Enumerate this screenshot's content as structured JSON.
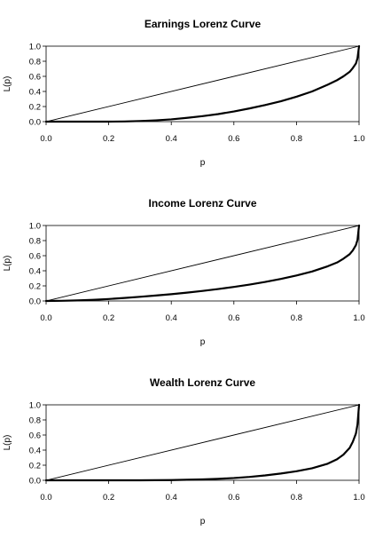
{
  "chart_data": [
    {
      "type": "line",
      "title": "Earnings Lorenz Curve",
      "xlabel": "p",
      "ylabel": "L(p)",
      "xlim": [
        0,
        1
      ],
      "ylim": [
        0,
        1
      ],
      "xticks": [
        "0.0",
        "0.2",
        "0.4",
        "0.6",
        "0.8",
        "1.0"
      ],
      "yticks": [
        "0.0",
        "0.2",
        "0.4",
        "0.6",
        "0.8",
        "1.0"
      ],
      "grid": false,
      "series": [
        {
          "role": "equality-line",
          "x": [
            0,
            1
          ],
          "y": [
            0,
            1
          ]
        },
        {
          "role": "lorenz-curve",
          "x": [
            0,
            0.1,
            0.2,
            0.25,
            0.3,
            0.35,
            0.4,
            0.45,
            0.5,
            0.55,
            0.6,
            0.65,
            0.7,
            0.75,
            0.8,
            0.85,
            0.9,
            0.93,
            0.95,
            0.97,
            0.98,
            0.99,
            0.995,
            1.0
          ],
          "y": [
            0,
            0,
            0,
            0.002,
            0.008,
            0.017,
            0.03,
            0.05,
            0.073,
            0.1,
            0.135,
            0.175,
            0.22,
            0.27,
            0.33,
            0.4,
            0.49,
            0.55,
            0.6,
            0.66,
            0.71,
            0.77,
            0.84,
            1.0
          ]
        }
      ]
    },
    {
      "type": "line",
      "title": "Income Lorenz Curve",
      "xlabel": "p",
      "ylabel": "L(p)",
      "xlim": [
        0,
        1
      ],
      "ylim": [
        0,
        1
      ],
      "xticks": [
        "0.0",
        "0.2",
        "0.4",
        "0.6",
        "0.8",
        "1.0"
      ],
      "yticks": [
        "0.0",
        "0.2",
        "0.4",
        "0.6",
        "0.8",
        "1.0"
      ],
      "grid": false,
      "series": [
        {
          "role": "equality-line",
          "x": [
            0,
            1
          ],
          "y": [
            0,
            1
          ]
        },
        {
          "role": "lorenz-curve",
          "x": [
            0,
            0.05,
            0.1,
            0.15,
            0.2,
            0.25,
            0.3,
            0.35,
            0.4,
            0.45,
            0.5,
            0.55,
            0.6,
            0.65,
            0.7,
            0.75,
            0.8,
            0.85,
            0.9,
            0.93,
            0.95,
            0.97,
            0.98,
            0.99,
            0.995,
            1.0
          ],
          "y": [
            0,
            0.002,
            0.007,
            0.015,
            0.026,
            0.04,
            0.055,
            0.072,
            0.09,
            0.11,
            0.133,
            0.158,
            0.186,
            0.217,
            0.252,
            0.292,
            0.338,
            0.39,
            0.46,
            0.51,
            0.56,
            0.62,
            0.67,
            0.74,
            0.81,
            1.0
          ]
        }
      ]
    },
    {
      "type": "line",
      "title": "Wealth Lorenz Curve",
      "xlabel": "p",
      "ylabel": "L(p)",
      "xlim": [
        0,
        1
      ],
      "ylim": [
        0,
        1
      ],
      "xticks": [
        "0.0",
        "0.2",
        "0.4",
        "0.6",
        "0.8",
        "1.0"
      ],
      "yticks": [
        "0.0",
        "0.2",
        "0.4",
        "0.6",
        "0.8",
        "1.0"
      ],
      "grid": false,
      "series": [
        {
          "role": "equality-line",
          "x": [
            0,
            1
          ],
          "y": [
            0,
            1
          ]
        },
        {
          "role": "lorenz-curve",
          "x": [
            0,
            0.2,
            0.3,
            0.35,
            0.4,
            0.45,
            0.5,
            0.55,
            0.6,
            0.65,
            0.7,
            0.75,
            0.8,
            0.85,
            0.9,
            0.93,
            0.95,
            0.97,
            0.98,
            0.99,
            0.995,
            1.0
          ],
          "y": [
            0,
            0,
            0,
            0.001,
            0.003,
            0.007,
            0.012,
            0.02,
            0.03,
            0.045,
            0.065,
            0.09,
            0.12,
            0.16,
            0.22,
            0.28,
            0.34,
            0.43,
            0.51,
            0.62,
            0.74,
            1.0
          ]
        }
      ]
    }
  ]
}
